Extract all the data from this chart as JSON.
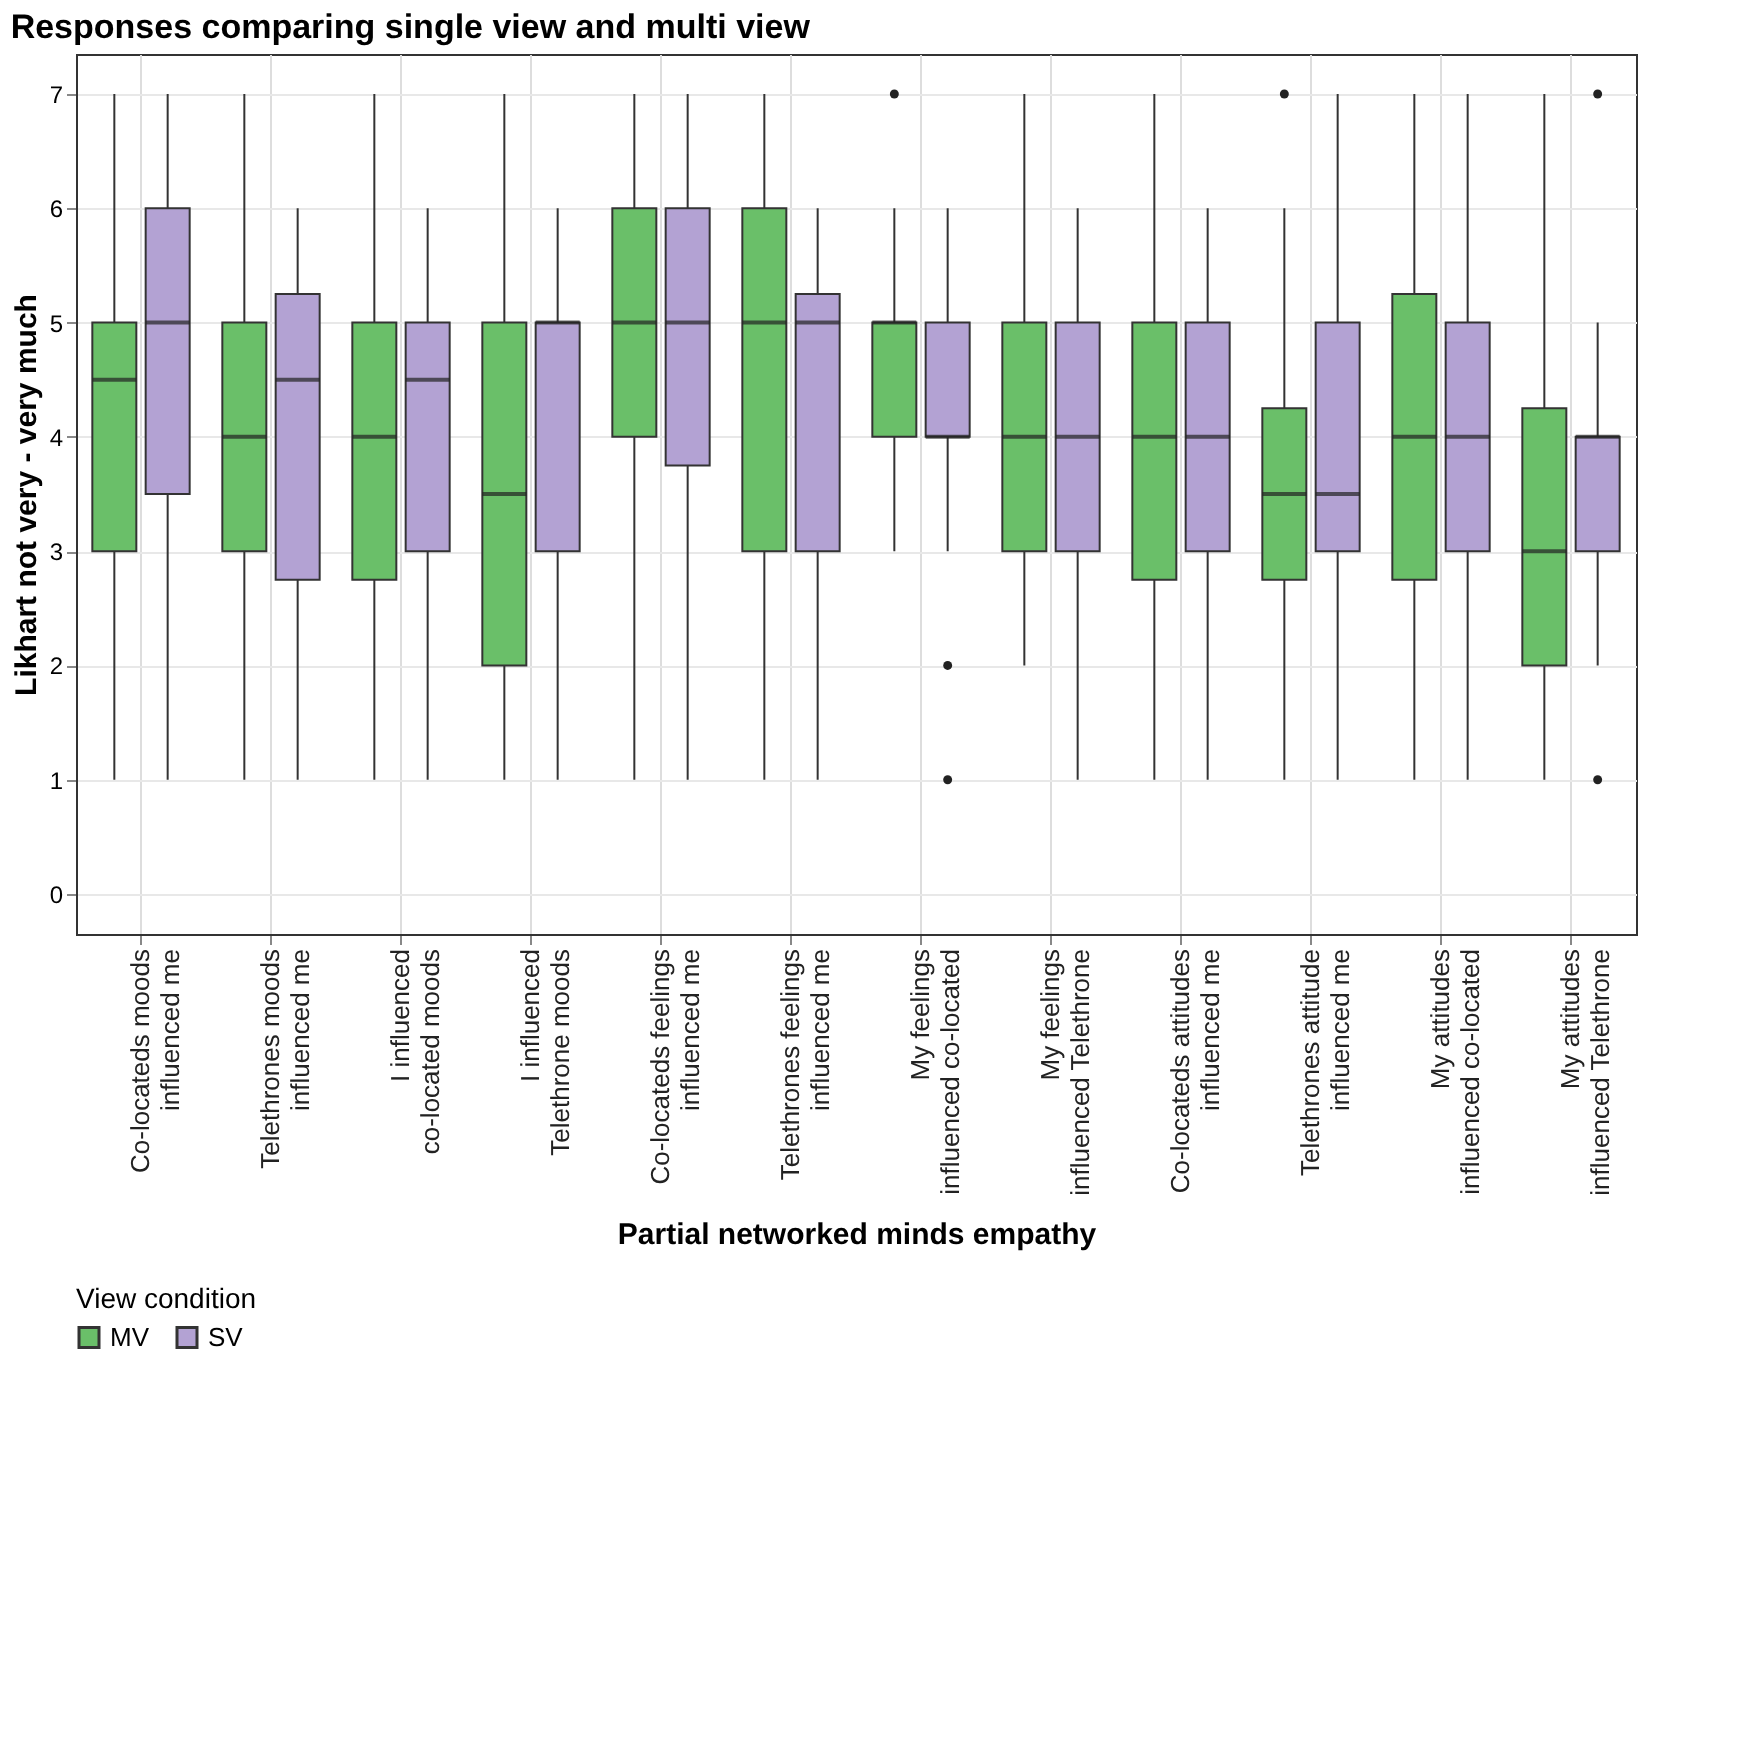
{
  "chart_data": {
    "type": "box",
    "title": "Responses comparing single view and multi view",
    "xlabel": "Partial networked minds empathy",
    "ylabel": "Likhart not very - very much",
    "legend_title": "View condition",
    "categories": [
      "Co-locateds moods influenced me",
      "Telethrones moods influenced me",
      "I influenced co-located moods",
      "I influenced Telethrone moods",
      "Co-locateds feelings influenced me",
      "Telethrones feelings influenced me",
      "My feelings influenced co-located",
      "My feelings influenced Telethrone",
      "Co-locateds attitudes influenced me",
      "Telethrones attitude influenced me",
      "My attitudes influenced co-located",
      "My attitudes influenced Telethrone"
    ],
    "series": [
      {
        "name": "MV",
        "color": "#6abf69",
        "boxes": [
          {
            "low": 1,
            "q1": 3,
            "median": 4.5,
            "q3": 5,
            "high": 7
          },
          {
            "low": 1,
            "q1": 3,
            "median": 4,
            "q3": 5,
            "high": 7
          },
          {
            "low": 1,
            "q1": 2.75,
            "median": 4,
            "q3": 5,
            "high": 7
          },
          {
            "low": 1,
            "q1": 2,
            "median": 3.5,
            "q3": 5,
            "high": 7
          },
          {
            "low": 1,
            "q1": 4,
            "median": 5,
            "q3": 6,
            "high": 7
          },
          {
            "low": 1,
            "q1": 3,
            "median": 5,
            "q3": 6,
            "high": 7
          },
          {
            "low": 3,
            "q1": 4,
            "median": 5,
            "q3": 5,
            "high": 6,
            "outliers": [
              7
            ]
          },
          {
            "low": 2,
            "q1": 3,
            "median": 4,
            "q3": 5,
            "high": 7
          },
          {
            "low": 1,
            "q1": 2.75,
            "median": 4,
            "q3": 5,
            "high": 7
          },
          {
            "low": 1,
            "q1": 2.75,
            "median": 3.5,
            "q3": 4.25,
            "high": 6,
            "outliers": [
              7
            ]
          },
          {
            "low": 1,
            "q1": 2.75,
            "median": 4,
            "q3": 5.25,
            "high": 7
          },
          {
            "low": 1,
            "q1": 2,
            "median": 3,
            "q3": 4.25,
            "high": 7
          }
        ]
      },
      {
        "name": "SV",
        "color": "#b3a2d3",
        "boxes": [
          {
            "low": 1,
            "q1": 3.5,
            "median": 5,
            "q3": 6,
            "high": 7
          },
          {
            "low": 1,
            "q1": 2.75,
            "median": 4.5,
            "q3": 5.25,
            "high": 6
          },
          {
            "low": 1,
            "q1": 3,
            "median": 4.5,
            "q3": 5,
            "high": 6
          },
          {
            "low": 1,
            "q1": 3,
            "median": 5,
            "q3": 5,
            "high": 6
          },
          {
            "low": 1,
            "q1": 3.75,
            "median": 5,
            "q3": 6,
            "high": 7
          },
          {
            "low": 1,
            "q1": 3,
            "median": 5,
            "q3": 5.25,
            "high": 6
          },
          {
            "low": 3,
            "q1": 4,
            "median": 4,
            "q3": 5,
            "high": 6,
            "outliers": [
              2,
              1
            ]
          },
          {
            "low": 1,
            "q1": 3,
            "median": 4,
            "q3": 5,
            "high": 6
          },
          {
            "low": 1,
            "q1": 3,
            "median": 4,
            "q3": 5,
            "high": 6
          },
          {
            "low": 1,
            "q1": 3,
            "median": 3.5,
            "q3": 5,
            "high": 7
          },
          {
            "low": 1,
            "q1": 3,
            "median": 4,
            "q3": 5,
            "high": 7
          },
          {
            "low": 2,
            "q1": 3,
            "median": 4,
            "q3": 4,
            "high": 5,
            "outliers": [
              7,
              1
            ]
          }
        ]
      }
    ],
    "ylim": [
      -0.35,
      7.35
    ],
    "yticks": [
      0,
      1,
      2,
      3,
      4,
      5,
      6,
      7
    ],
    "grid": true,
    "legend": "bottom"
  }
}
